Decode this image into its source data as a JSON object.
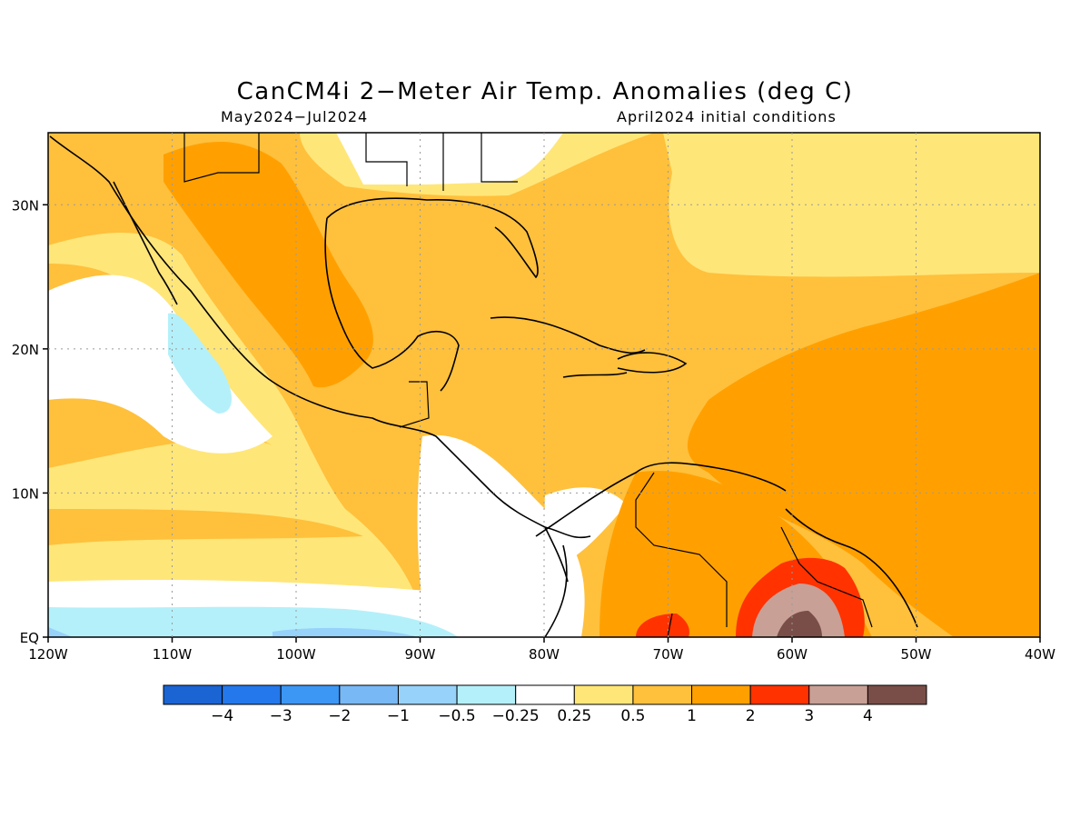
{
  "title": "CanCM4i 2−Meter Air Temp. Anomalies (deg C)",
  "subtitle_left": "May2024−Jul2024",
  "subtitle_right": "April2024 initial conditions",
  "map": {
    "lon_range": [
      -120,
      -40
    ],
    "lat_range": [
      0,
      35
    ],
    "lat_ticks": [
      {
        "lat": 30,
        "label": "30N"
      },
      {
        "lat": 20,
        "label": "20N"
      },
      {
        "lat": 10,
        "label": "10N"
      },
      {
        "lat": 0,
        "label": "EQ"
      }
    ],
    "lon_ticks": [
      {
        "lon": -120,
        "label": "120W"
      },
      {
        "lon": -110,
        "label": "110W"
      },
      {
        "lon": -100,
        "label": "100W"
      },
      {
        "lon": -90,
        "label": "90W"
      },
      {
        "lon": -80,
        "label": "80W"
      },
      {
        "lon": -70,
        "label": "70W"
      },
      {
        "lon": -60,
        "label": "60W"
      },
      {
        "lon": -50,
        "label": "50W"
      },
      {
        "lon": -40,
        "label": "40W"
      }
    ],
    "grid": true
  },
  "colorbar": {
    "colors": [
      "#1a64d4",
      "#2478ec",
      "#3c96f4",
      "#78b8f4",
      "#96d2fa",
      "#b4f0fa",
      "#ffffff",
      "#ffe678",
      "#ffc03c",
      "#ffa000",
      "#ff3200",
      "#c8a096",
      "#7a4e48"
    ],
    "labels": [
      "−4",
      "−3",
      "−2",
      "−1",
      "−0.5",
      "−0.25",
      "0.25",
      "0.5",
      "1",
      "2",
      "3",
      "4"
    ]
  }
}
